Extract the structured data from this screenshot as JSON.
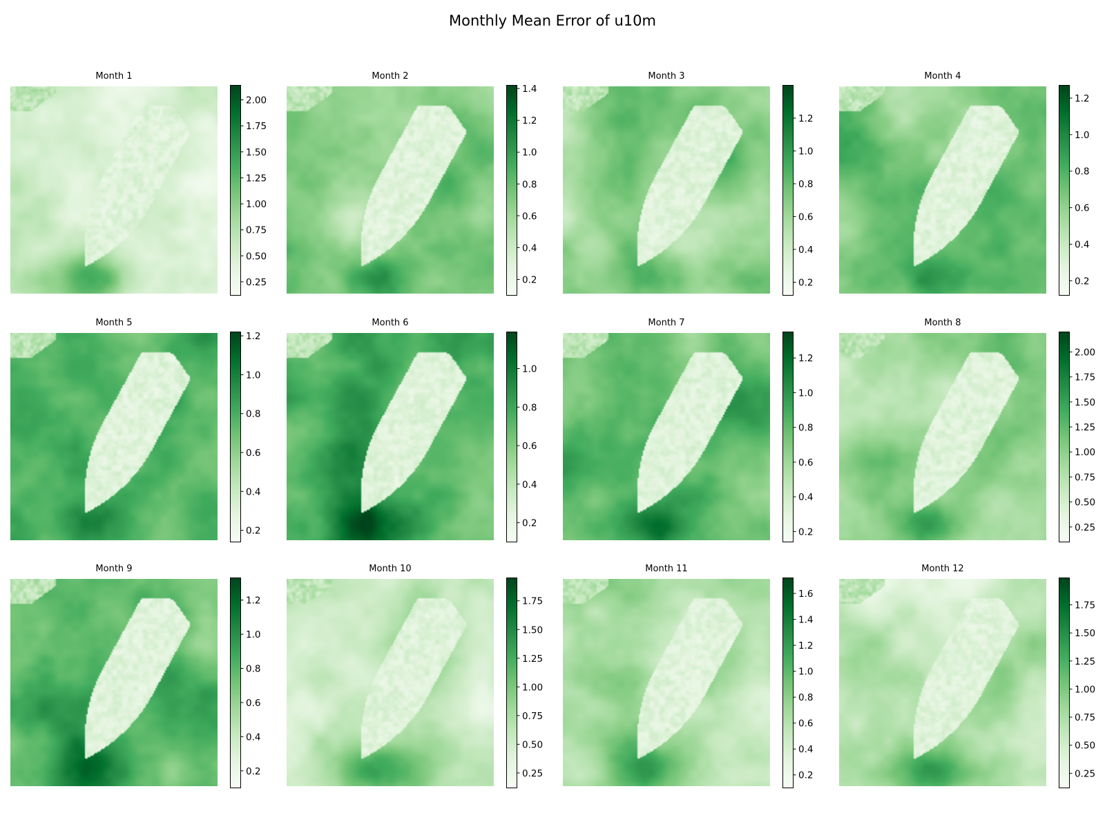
{
  "title": "Monthly Mean Error of u10m",
  "colormap": {
    "name": "Greens",
    "stops": [
      "#f7fcf5",
      "#e5f5e0",
      "#c7e9c0",
      "#a1d99b",
      "#74c476",
      "#41ab5d",
      "#238b45",
      "#006d2c",
      "#00441b"
    ]
  },
  "chart_data": [
    {
      "type": "heatmap",
      "title": "Month 1",
      "colorbar": {
        "range": [
          0.12,
          2.14
        ],
        "ticks": [
          "0.25",
          "0.50",
          "0.75",
          "1.00",
          "1.25",
          "1.50",
          "1.75",
          "2.00"
        ]
      }
    },
    {
      "type": "heatmap",
      "title": "Month 2",
      "colorbar": {
        "range": [
          0.1,
          1.42
        ],
        "ticks": [
          "0.2",
          "0.4",
          "0.6",
          "0.8",
          "1.0",
          "1.2",
          "1.4"
        ]
      }
    },
    {
      "type": "heatmap",
      "title": "Month 3",
      "colorbar": {
        "range": [
          0.12,
          1.4
        ],
        "ticks": [
          "0.2",
          "0.4",
          "0.6",
          "0.8",
          "1.0",
          "1.2"
        ]
      }
    },
    {
      "type": "heatmap",
      "title": "Month 4",
      "colorbar": {
        "range": [
          0.12,
          1.27
        ],
        "ticks": [
          "0.2",
          "0.4",
          "0.6",
          "0.8",
          "1.0",
          "1.2"
        ]
      }
    },
    {
      "type": "heatmap",
      "title": "Month 5",
      "colorbar": {
        "range": [
          0.14,
          1.22
        ],
        "ticks": [
          "0.2",
          "0.4",
          "0.6",
          "0.8",
          "1.0",
          "1.2"
        ]
      }
    },
    {
      "type": "heatmap",
      "title": "Month 6",
      "colorbar": {
        "range": [
          0.1,
          1.19
        ],
        "ticks": [
          "0.2",
          "0.4",
          "0.6",
          "0.8",
          "1.0"
        ]
      }
    },
    {
      "type": "heatmap",
      "title": "Month 7",
      "colorbar": {
        "range": [
          0.14,
          1.35
        ],
        "ticks": [
          "0.2",
          "0.4",
          "0.6",
          "0.8",
          "1.0",
          "1.2"
        ]
      }
    },
    {
      "type": "heatmap",
      "title": "Month 8",
      "colorbar": {
        "range": [
          0.1,
          2.2
        ],
        "ticks": [
          "0.25",
          "0.50",
          "0.75",
          "1.00",
          "1.25",
          "1.50",
          "1.75",
          "2.00"
        ]
      }
    },
    {
      "type": "heatmap",
      "title": "Month 9",
      "colorbar": {
        "range": [
          0.1,
          1.33
        ],
        "ticks": [
          "0.2",
          "0.4",
          "0.6",
          "0.8",
          "1.0",
          "1.2"
        ]
      }
    },
    {
      "type": "heatmap",
      "title": "Month 10",
      "colorbar": {
        "range": [
          0.12,
          1.95
        ],
        "ticks": [
          "0.25",
          "0.50",
          "0.75",
          "1.00",
          "1.25",
          "1.50",
          "1.75"
        ]
      }
    },
    {
      "type": "heatmap",
      "title": "Month 11",
      "colorbar": {
        "range": [
          0.1,
          1.72
        ],
        "ticks": [
          "0.2",
          "0.4",
          "0.6",
          "0.8",
          "1.0",
          "1.2",
          "1.4",
          "1.6"
        ]
      }
    },
    {
      "type": "heatmap",
      "title": "Month 12",
      "colorbar": {
        "range": [
          0.12,
          1.99
        ],
        "ticks": [
          "0.25",
          "0.50",
          "0.75",
          "1.00",
          "1.25",
          "1.50",
          "1.75"
        ]
      }
    }
  ]
}
